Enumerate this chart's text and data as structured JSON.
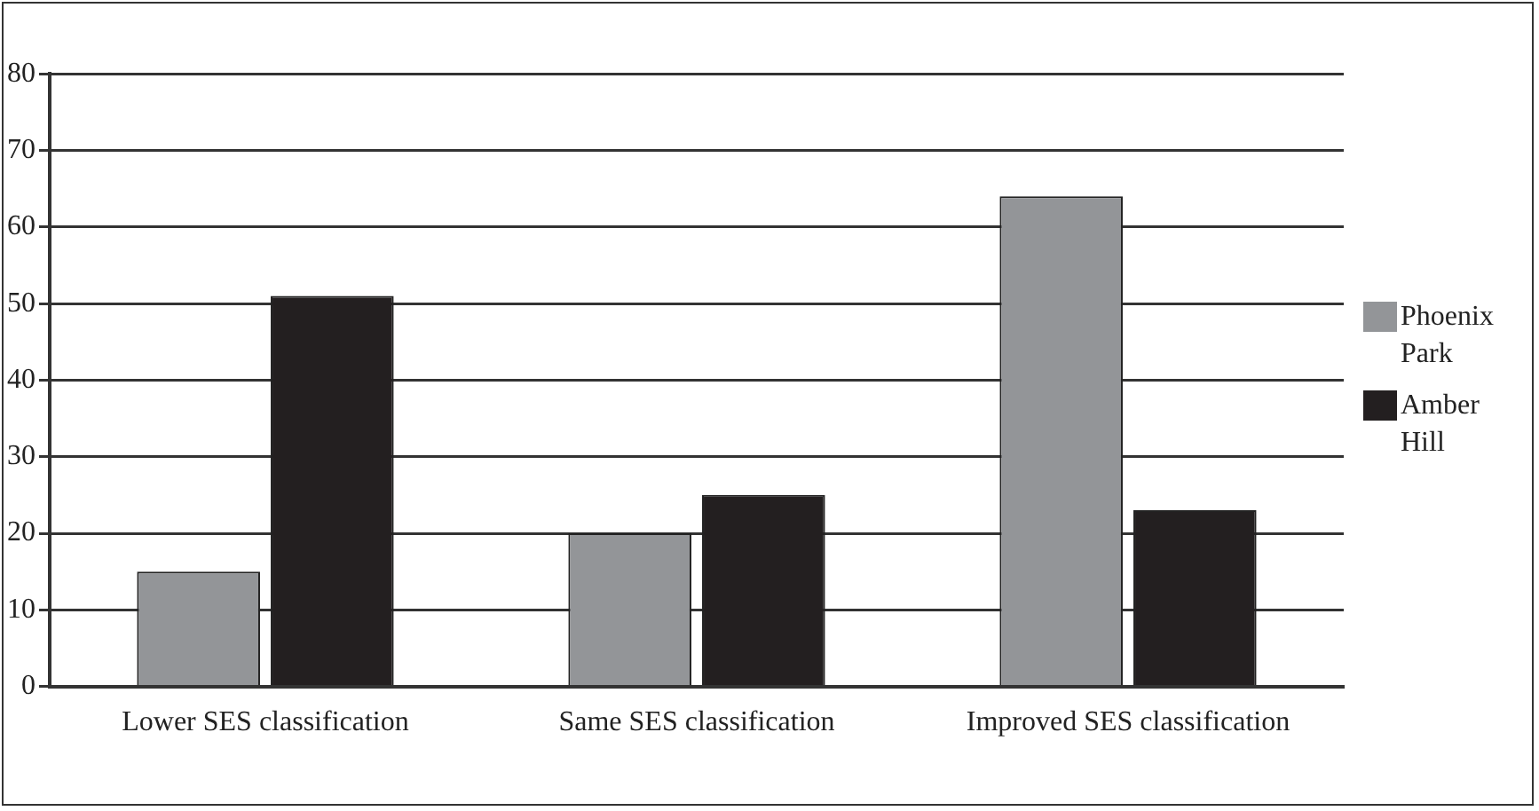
{
  "chart_data": {
    "type": "bar",
    "categories": [
      "Lower SES classification",
      "Same SES classification",
      "Improved SES classification"
    ],
    "series": [
      {
        "name": "Phoenix Park",
        "color": "#939598",
        "values": [
          15,
          20,
          64
        ]
      },
      {
        "name": "Amber Hill",
        "color": "#231f20",
        "values": [
          51,
          25,
          23
        ]
      }
    ],
    "ylim": [
      0,
      80
    ],
    "yticks": [
      0,
      10,
      20,
      30,
      40,
      50,
      60,
      70,
      80
    ],
    "grid": "y",
    "legend": "right"
  }
}
